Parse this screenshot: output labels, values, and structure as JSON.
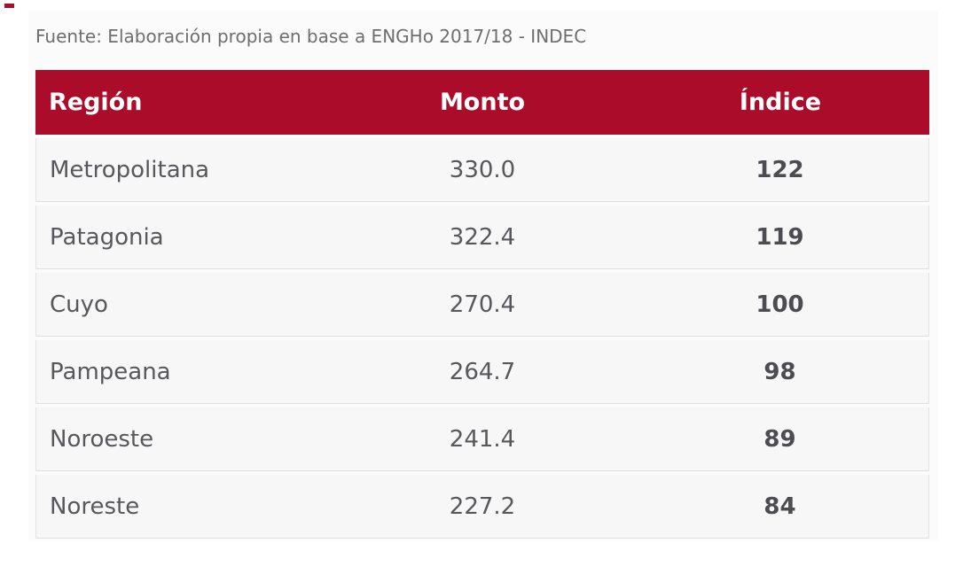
{
  "source_note": "Fuente: Elaboración propia en base a ENGHo 2017/18 - INDEC",
  "chart_data": {
    "type": "table",
    "title": "",
    "columns": [
      "Región",
      "Monto",
      "Índice"
    ],
    "rows": [
      [
        "Metropolitana",
        "330.0",
        "122"
      ],
      [
        "Patagonia",
        "322.4",
        "119"
      ],
      [
        "Cuyo",
        "270.4",
        "100"
      ],
      [
        "Pampeana",
        "264.7",
        "98"
      ],
      [
        "Noroeste",
        "241.4",
        "89"
      ],
      [
        "Noreste",
        "227.2",
        "84"
      ]
    ],
    "layout_hints": {
      "region_column_align": "left",
      "monto_column_align": "center",
      "indice_column_align": "center",
      "indice_bold": true
    }
  },
  "colors": {
    "header_bg": "#ab0c2a",
    "header_text": "#ffffff",
    "row_bg": "#f7f7f8",
    "card_bg": "#fbfbfb",
    "body_text": "#58585c",
    "indice_text": "#4d4d51",
    "note_text": "#6e6e6e",
    "row_border": "#e2e2e2"
  }
}
